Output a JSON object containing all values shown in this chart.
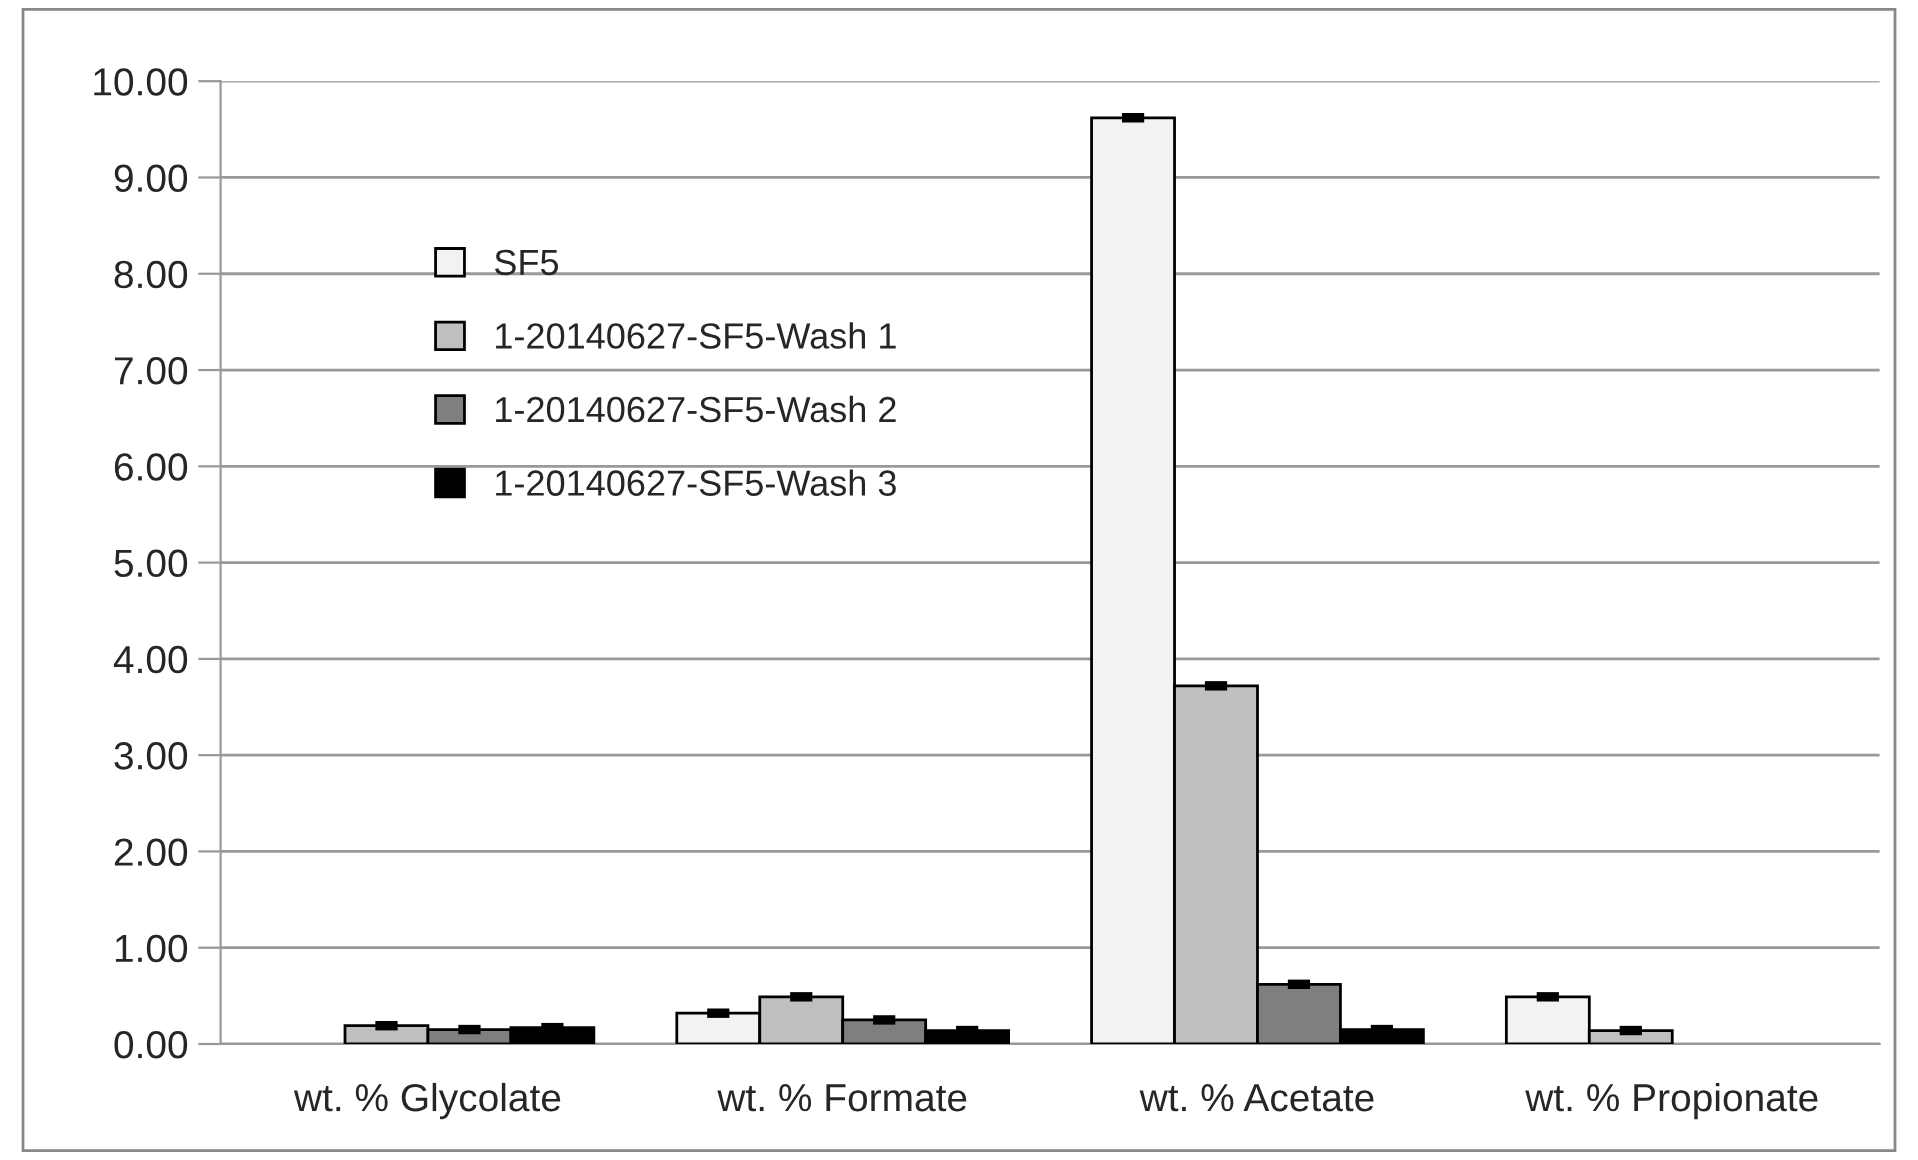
{
  "chart_data": {
    "type": "bar",
    "categories": [
      "wt. % Glycolate",
      "wt. % Formate",
      "wt. % Acetate",
      "wt. % Propionate"
    ],
    "series": [
      {
        "name": "SF5",
        "color": "#f2f2f2",
        "values": [
          null,
          0.32,
          9.62,
          0.49
        ],
        "errors": [
          null,
          0.02,
          0.02,
          0.02
        ]
      },
      {
        "name": "1-20140627-SF5-Wash 1",
        "color": "#bfbfbf",
        "values": [
          0.19,
          0.49,
          3.72,
          0.14
        ],
        "errors": [
          0.02,
          0.02,
          0.02,
          0.02
        ]
      },
      {
        "name": "1-20140627-SF5-Wash 2",
        "color": "#7f7f7f",
        "values": [
          0.15,
          0.25,
          0.62,
          null
        ],
        "errors": [
          0.02,
          0.02,
          0.02,
          null
        ]
      },
      {
        "name": "1-20140627-SF5-Wash 3",
        "color": "#000000",
        "values": [
          0.17,
          0.14,
          0.15,
          null
        ],
        "errors": [
          0.02,
          0.02,
          0.02,
          null
        ]
      }
    ],
    "ylim": [
      0,
      10
    ],
    "yticks": [
      {
        "value": 0,
        "label": "0.00"
      },
      {
        "value": 1,
        "label": "1.00"
      },
      {
        "value": 2,
        "label": "2.00"
      },
      {
        "value": 3,
        "label": "3.00"
      },
      {
        "value": 4,
        "label": "4.00"
      },
      {
        "value": 5,
        "label": "5.00"
      },
      {
        "value": 6,
        "label": "6.00"
      },
      {
        "value": 7,
        "label": "7.00"
      },
      {
        "value": 8,
        "label": "8.00"
      },
      {
        "value": 9,
        "label": "9.00"
      },
      {
        "value": 10,
        "label": "10.00"
      }
    ],
    "grid": "y",
    "legend": "top left"
  }
}
